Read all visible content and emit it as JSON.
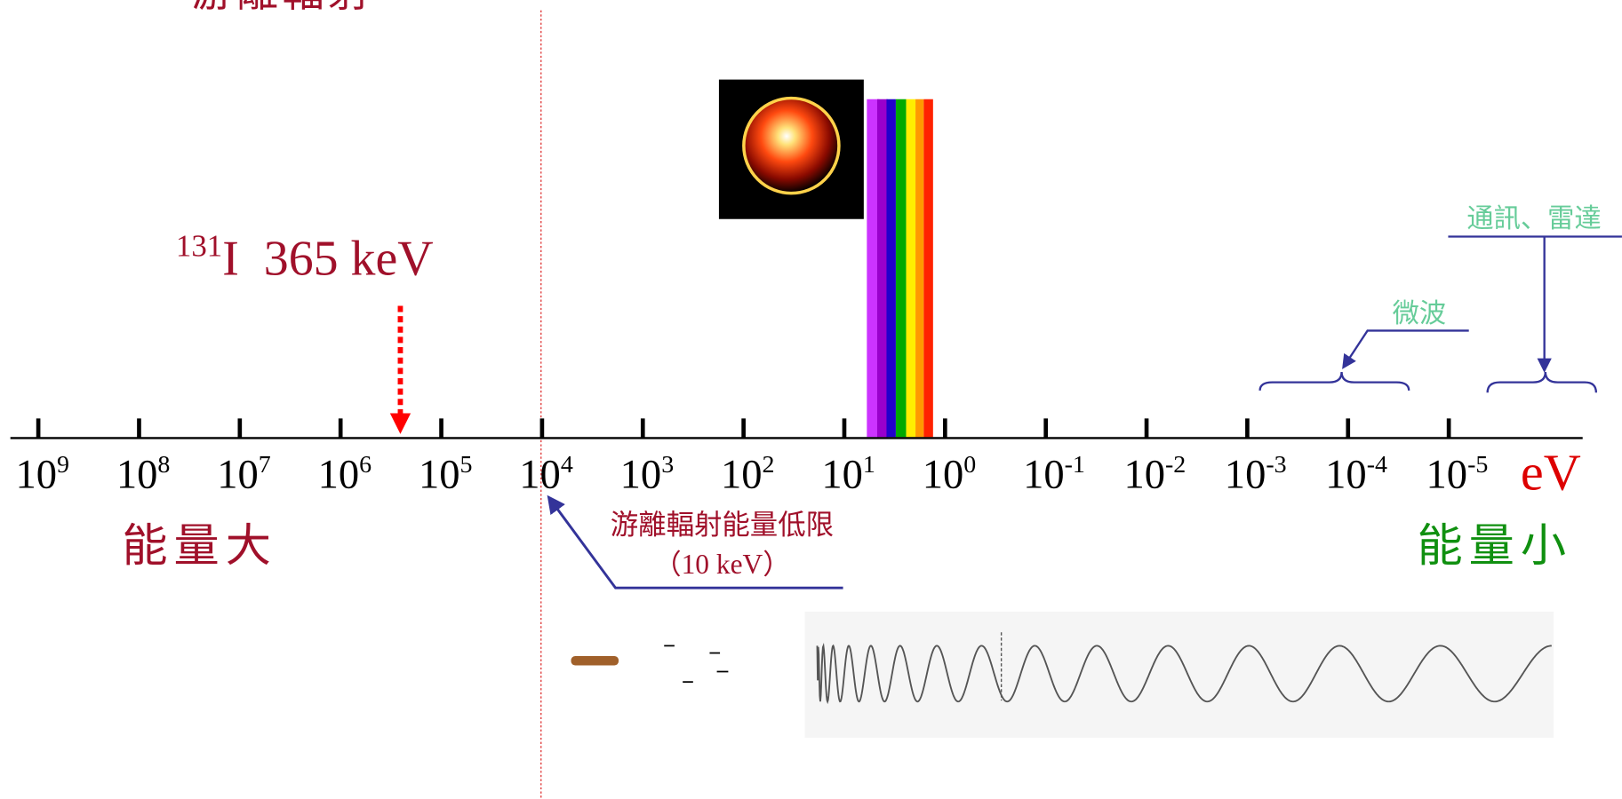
{
  "header": {
    "title": "游離輻射"
  },
  "isotope": {
    "mass": "131",
    "label": "I  365 keV"
  },
  "axis": {
    "ticks": [
      {
        "base": "10",
        "exponent": "9"
      },
      {
        "base": "10",
        "exponent": "8"
      },
      {
        "base": "10",
        "exponent": "7"
      },
      {
        "base": "10",
        "exponent": "6"
      },
      {
        "base": "10",
        "exponent": "5"
      },
      {
        "base": "10",
        "exponent": "4"
      },
      {
        "base": "10",
        "exponent": "3"
      },
      {
        "base": "10",
        "exponent": "2"
      },
      {
        "base": "10",
        "exponent": "1"
      },
      {
        "base": "10",
        "exponent": "0"
      },
      {
        "base": "10",
        "exponent": "-1"
      },
      {
        "base": "10",
        "exponent": "-2"
      },
      {
        "base": "10",
        "exponent": "-3"
      },
      {
        "base": "10",
        "exponent": "-4"
      },
      {
        "base": "10",
        "exponent": "-5"
      }
    ],
    "unit": "eV"
  },
  "energy_high": "能量大",
  "energy_low": "能量小",
  "threshold": {
    "label": "游離輻射能量低限",
    "value": "（10 keV）"
  },
  "microwave": "微波",
  "radar": "通訊、雷達"
}
